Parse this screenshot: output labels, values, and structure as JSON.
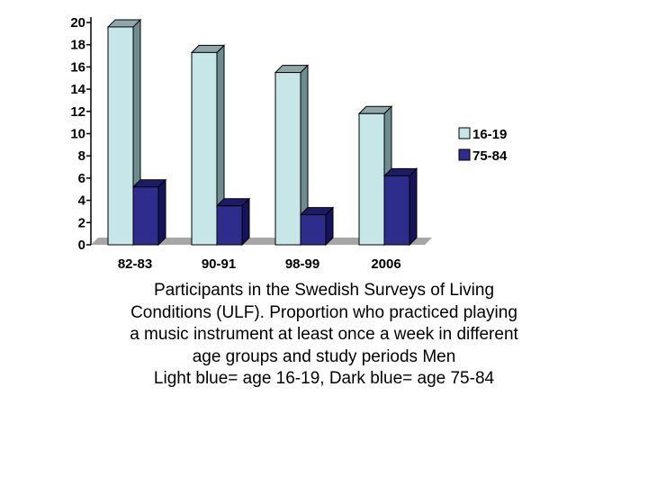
{
  "chart_data": {
    "type": "bar",
    "categories": [
      "82-83",
      "90-91",
      "98-99",
      "2006"
    ],
    "series": [
      {
        "name": "16-19",
        "values": [
          19.6,
          17.3,
          15.5,
          11.8
        ]
      },
      {
        "name": "75-84",
        "values": [
          5.2,
          3.5,
          2.7,
          6.2
        ]
      }
    ],
    "y_ticks": [
      "0",
      "2",
      "4",
      "6",
      "8",
      "10",
      "12",
      "14",
      "16",
      "18",
      "20"
    ],
    "ylim": [
      0,
      20
    ],
    "legend_position": "right",
    "style": "3d-bar",
    "colors": {
      "series1_front": "#c6e6e8",
      "series1_side": "#6e8c8e",
      "series1_top": "#90a6a8",
      "series2_front": "#2e2d8c",
      "series2_side": "#15145a",
      "series2_top": "#1c1b66",
      "floor": "#a6a6a6"
    }
  },
  "caption": {
    "line1": "Participants in the Swedish Surveys of Living",
    "line2": "Conditions (ULF). Proportion who practiced playing",
    "line3": "a music instrument at least once a week in different",
    "line4": "age groups and study periods   Men",
    "line5": "Light blue= age 16-19, Dark blue= age 75-84"
  }
}
